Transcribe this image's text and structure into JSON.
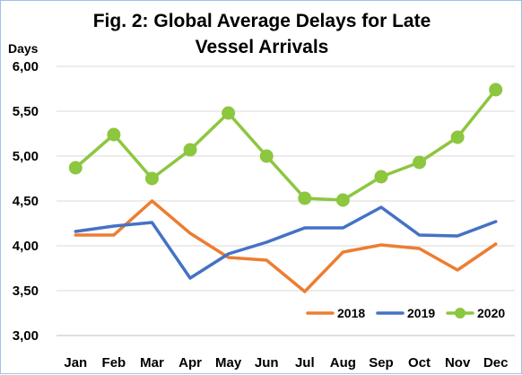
{
  "chart_data": {
    "type": "line",
    "title_line1": "Fig. 2: Global Average Delays for Late",
    "title_line2": "Vessel Arrivals",
    "ylabel": "Days",
    "ylim": [
      3.0,
      6.0
    ],
    "yticks": [
      "3,00",
      "3,50",
      "4,00",
      "4,50",
      "5,00",
      "5,50",
      "6,00"
    ],
    "categories": [
      "Jan",
      "Feb",
      "Mar",
      "Apr",
      "May",
      "Jun",
      "Jul",
      "Aug",
      "Sep",
      "Oct",
      "Nov",
      "Dec"
    ],
    "grid": "horizontal",
    "legend_position": "bottom-right",
    "series": [
      {
        "name": "2018",
        "color": "#ed7d31",
        "marker": false,
        "values": [
          4.12,
          4.12,
          4.5,
          4.14,
          3.87,
          3.84,
          3.49,
          3.93,
          4.01,
          3.97,
          3.73,
          4.02
        ]
      },
      {
        "name": "2019",
        "color": "#4472c4",
        "marker": false,
        "values": [
          4.16,
          4.22,
          4.26,
          3.64,
          3.91,
          4.04,
          4.2,
          4.2,
          4.43,
          4.12,
          4.11,
          4.27
        ]
      },
      {
        "name": "2020",
        "color": "#8dc63f",
        "marker": true,
        "values": [
          4.87,
          5.24,
          4.75,
          5.07,
          5.48,
          5.0,
          4.53,
          4.51,
          4.77,
          4.93,
          5.21,
          5.74
        ]
      }
    ]
  }
}
